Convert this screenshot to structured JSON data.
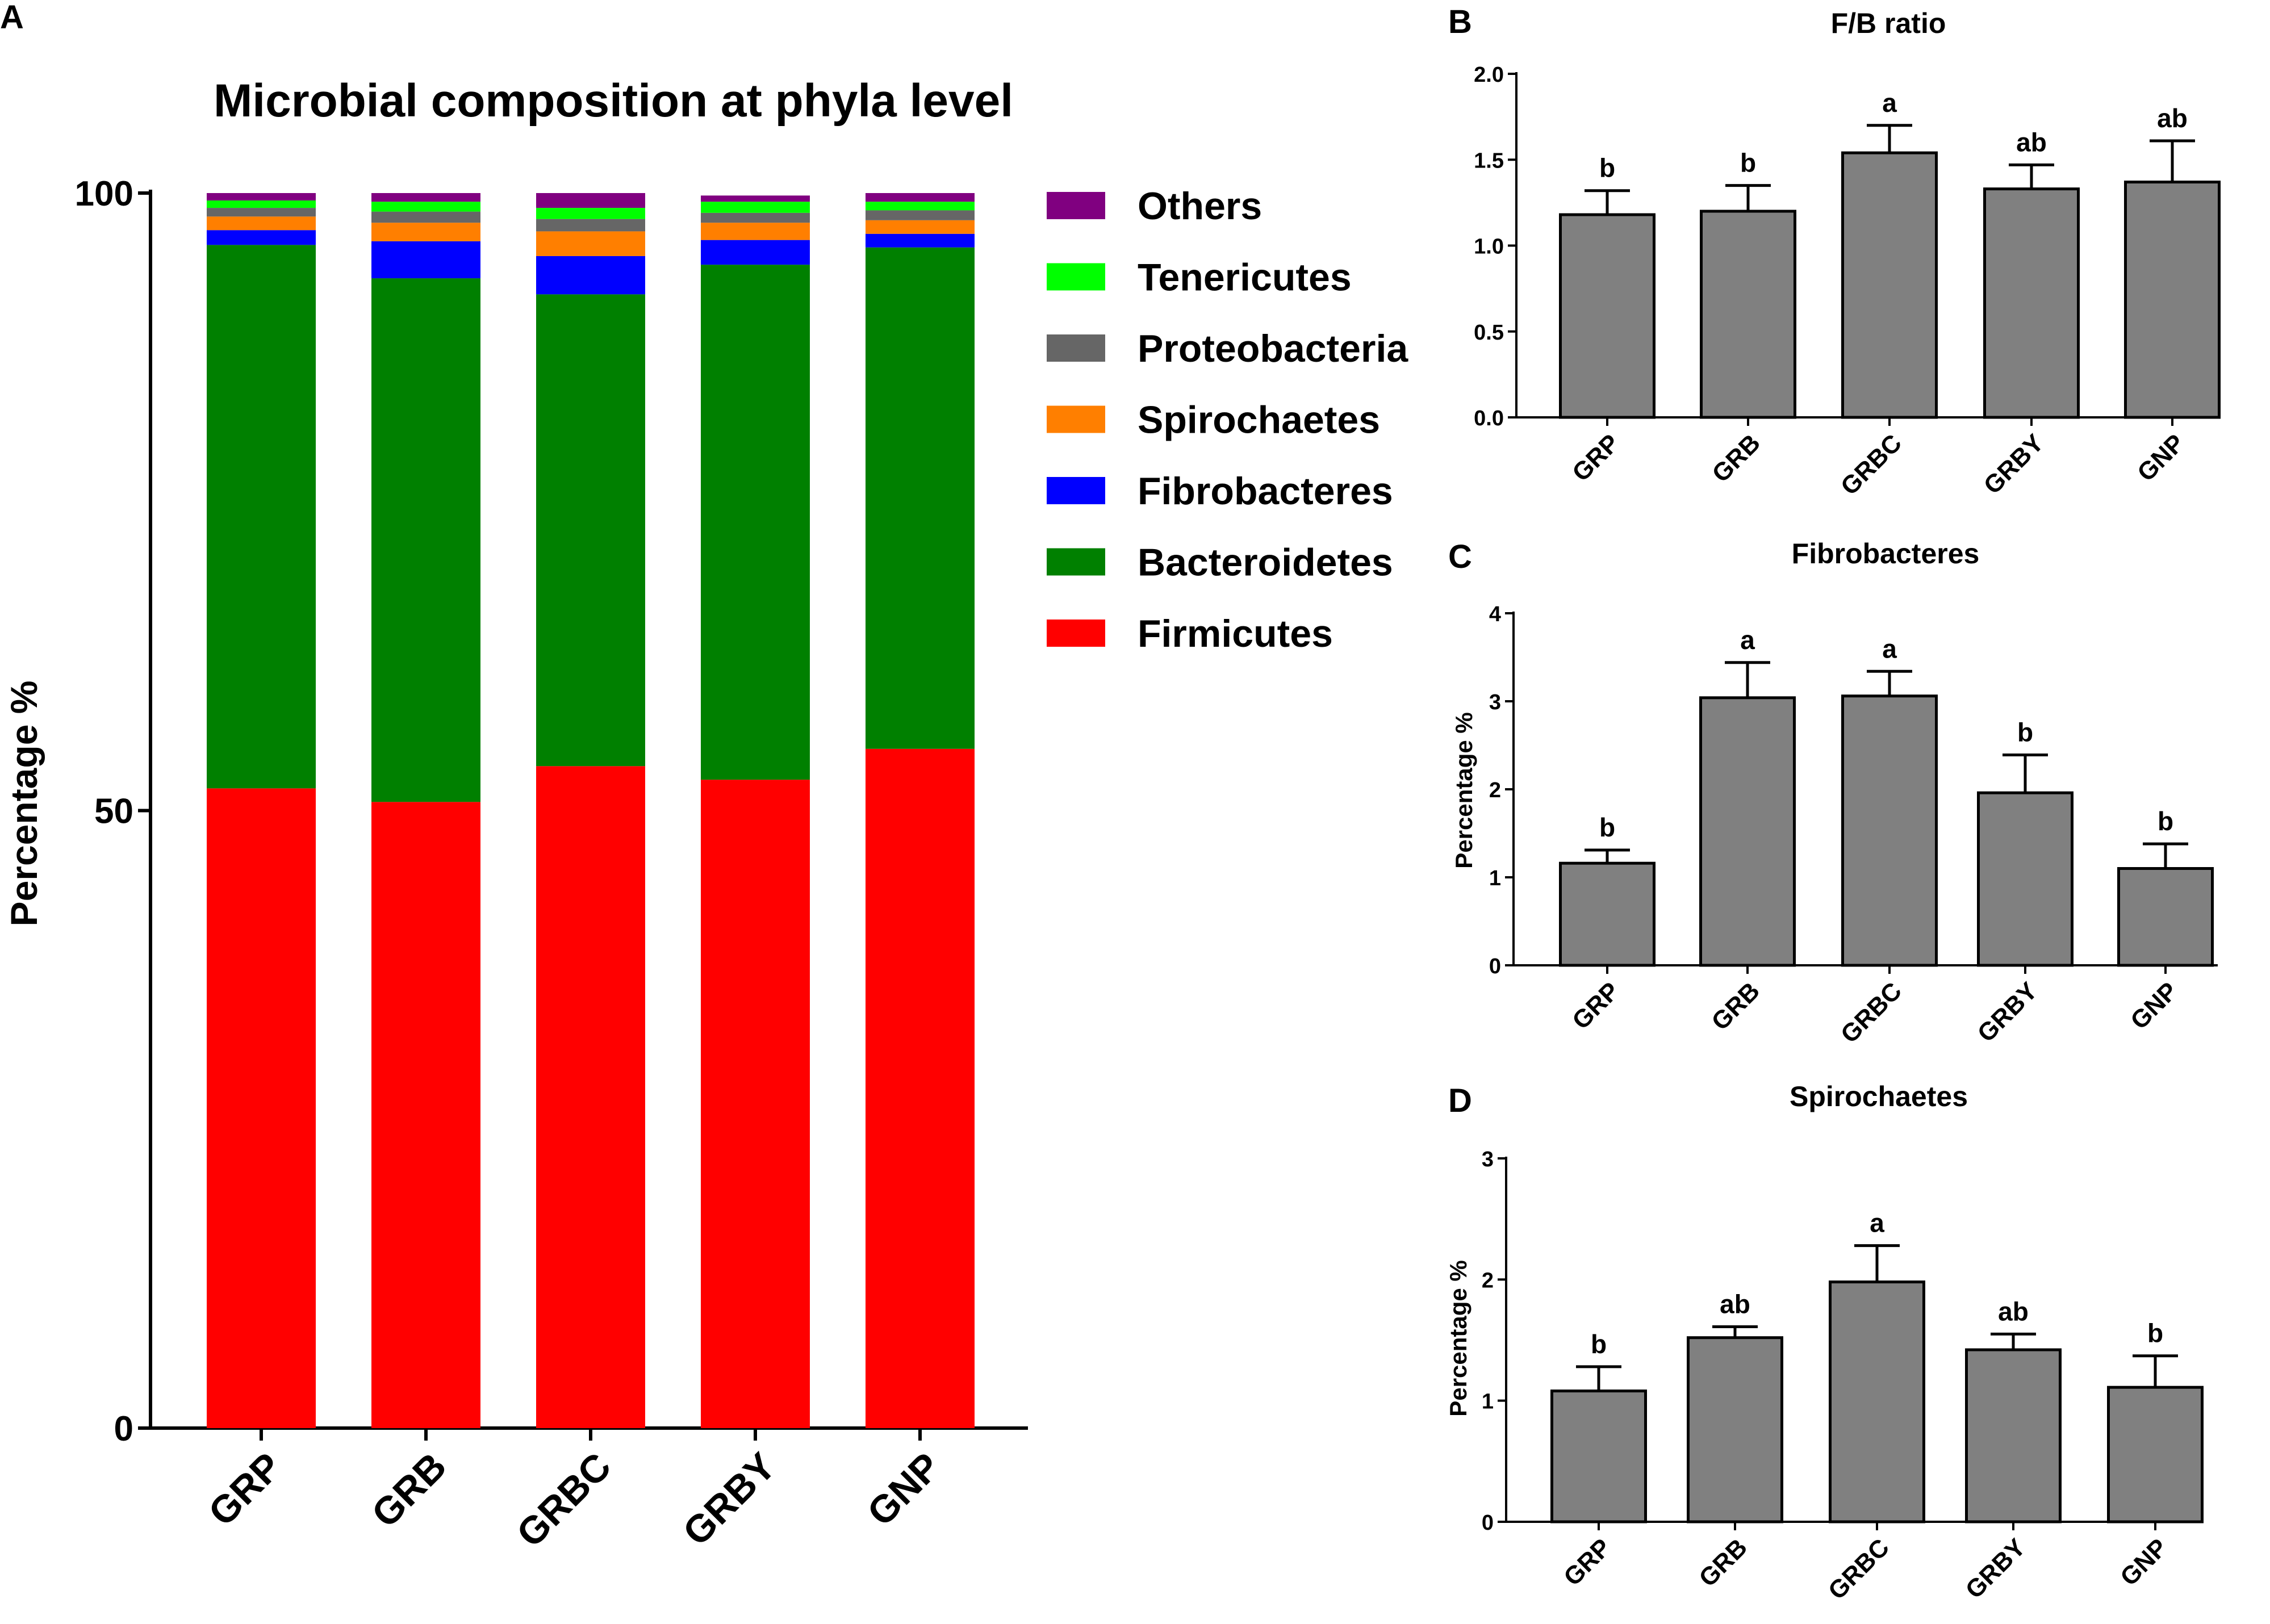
{
  "panels": {
    "A": {
      "label": "A"
    },
    "B": {
      "label": "B"
    },
    "C": {
      "label": "C"
    },
    "D": {
      "label": "D"
    }
  },
  "chart_data": [
    {
      "id": "A",
      "type": "bar",
      "stacked": true,
      "title": "Microbial composition at phyla level",
      "xlabel": "",
      "ylabel": "Percentage %",
      "ylim": [
        0,
        100
      ],
      "yticks": [
        "0",
        "50",
        "100"
      ],
      "categories": [
        "GRP",
        "GRB",
        "GRBC",
        "GRBY",
        "GNP"
      ],
      "series": [
        {
          "name": "Firmicutes",
          "color": "#ff0000",
          "values": [
            51.8,
            50.7,
            53.6,
            52.5,
            55.0
          ]
        },
        {
          "name": "Bacteroidetes",
          "color": "#008000",
          "values": [
            44.0,
            42.4,
            38.2,
            41.7,
            40.6
          ]
        },
        {
          "name": "Fibrobacteres",
          "color": "#0000ff",
          "values": [
            1.2,
            3.0,
            3.1,
            2.0,
            1.1
          ]
        },
        {
          "name": "Spirochaetes",
          "color": "#ff7f00",
          "values": [
            1.1,
            1.5,
            2.0,
            1.4,
            1.1
          ]
        },
        {
          "name": "Proteobacteria",
          "color": "#666666",
          "values": [
            0.7,
            0.9,
            1.0,
            0.8,
            0.8
          ]
        },
        {
          "name": "Tenericutes",
          "color": "#00ff00",
          "values": [
            0.6,
            0.8,
            0.9,
            0.9,
            0.7
          ]
        },
        {
          "name": "Others",
          "color": "#800080",
          "values": [
            0.6,
            0.7,
            1.2,
            0.5,
            0.7
          ]
        }
      ],
      "legend_order": [
        "Others",
        "Tenericutes",
        "Proteobacteria",
        "Spirochaetes",
        "Fibrobacteres",
        "Bacteroidetes",
        "Firmicutes"
      ],
      "legend_position": "right"
    },
    {
      "id": "B",
      "type": "bar",
      "title": "F/B ratio",
      "xlabel": "",
      "ylabel": "",
      "ylim": [
        0,
        2.0
      ],
      "yticks": [
        "0.0",
        "0.5",
        "1.0",
        "1.5",
        "2.0"
      ],
      "categories": [
        "GRP",
        "GRB",
        "GRBC",
        "GRBY",
        "GNP"
      ],
      "values": [
        1.18,
        1.2,
        1.54,
        1.33,
        1.37
      ],
      "errors": [
        0.14,
        0.15,
        0.16,
        0.14,
        0.24
      ],
      "significance": [
        "b",
        "b",
        "a",
        "ab",
        "ab"
      ],
      "bar_color": "#808080"
    },
    {
      "id": "C",
      "type": "bar",
      "title": "Fibrobacteres",
      "xlabel": "",
      "ylabel": "Percentage %",
      "ylim": [
        0,
        4
      ],
      "yticks": [
        "0",
        "1",
        "2",
        "3",
        "4"
      ],
      "categories": [
        "GRP",
        "GRB",
        "GRBC",
        "GRBY",
        "GNP"
      ],
      "values": [
        1.16,
        3.04,
        3.06,
        1.96,
        1.1
      ],
      "errors": [
        0.15,
        0.4,
        0.28,
        0.43,
        0.28
      ],
      "significance": [
        "b",
        "a",
        "a",
        "b",
        "b"
      ],
      "bar_color": "#808080"
    },
    {
      "id": "D",
      "type": "bar",
      "title": "Spirochaetes",
      "xlabel": "",
      "ylabel": "Percentage %",
      "ylim": [
        0,
        3
      ],
      "yticks": [
        "0",
        "1",
        "2",
        "3"
      ],
      "categories": [
        "GRP",
        "GRB",
        "GRBC",
        "GRBY",
        "GNP"
      ],
      "values": [
        1.08,
        1.52,
        1.98,
        1.42,
        1.11
      ],
      "errors": [
        0.2,
        0.09,
        0.3,
        0.13,
        0.26
      ],
      "significance": [
        "b",
        "ab",
        "a",
        "ab",
        "b"
      ],
      "bar_color": "#808080"
    }
  ]
}
